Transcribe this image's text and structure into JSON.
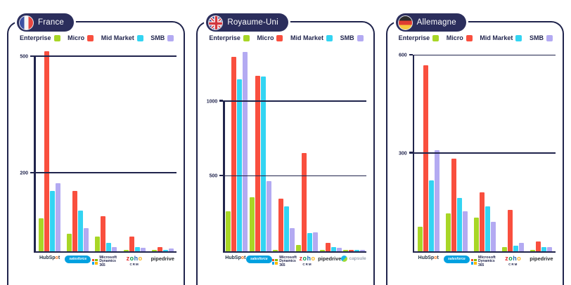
{
  "legend": {
    "items": [
      {
        "label": "Enterprise",
        "color": "#a8d626"
      },
      {
        "label": "Micro",
        "color": "#f94f3e"
      },
      {
        "label": "Mid Market",
        "color": "#33d4f2"
      },
      {
        "label": "SMB",
        "color": "#b3aaf2"
      }
    ]
  },
  "vendors": {
    "hubspot": {
      "label": "HubSpot"
    },
    "salesforce": {
      "label": "salesforce"
    },
    "dynamics": {
      "label": "Microsoft",
      "label2": "Dynamics 365"
    },
    "zoho": {
      "label": "zoho",
      "label2": "CRM"
    },
    "pipedrive": {
      "label": "pipedrive"
    },
    "capsule": {
      "label": "capsule"
    }
  },
  "colors": {
    "navy": "#20244c",
    "pill_bg": "#2b2e5c",
    "enterprise": "#a8d626",
    "micro": "#f94f3e",
    "mid_market": "#33d4f2",
    "smb": "#b3aaf2"
  },
  "chart_data": [
    {
      "type": "bar",
      "title": "France",
      "flag": "fr",
      "series_labels": [
        "Enterprise",
        "Micro",
        "Mid Market",
        "SMB"
      ],
      "ymax": 520,
      "ticks": [
        {
          "value": 500,
          "label": "500"
        },
        {
          "value": 200,
          "label": "200"
        }
      ],
      "grid": true,
      "legend_position": "top",
      "groups": [
        {
          "vendor": "hubspot",
          "values": [
            85,
            515,
            155,
            175
          ]
        },
        {
          "vendor": "salesforce",
          "values": [
            45,
            155,
            105,
            60
          ]
        },
        {
          "vendor": "dynamics",
          "values": [
            38,
            90,
            22,
            11
          ]
        },
        {
          "vendor": "zoho",
          "values": [
            4,
            38,
            11,
            9
          ]
        },
        {
          "vendor": "pipedrive",
          "values": [
            2,
            11,
            4,
            7
          ]
        }
      ]
    },
    {
      "type": "bar",
      "title": "Royaume-Uni",
      "flag": "uk",
      "series_labels": [
        "Enterprise",
        "Micro",
        "Mid Market",
        "SMB"
      ],
      "ymax": 1350,
      "ticks": [
        {
          "value": 1000,
          "label": "1000"
        },
        {
          "value": 500,
          "label": "500"
        }
      ],
      "grid": true,
      "legend_position": "top",
      "groups": [
        {
          "vendor": "hubspot",
          "values": [
            265,
            1300,
            1150,
            1330
          ]
        },
        {
          "vendor": "salesforce",
          "values": [
            360,
            1170,
            1165,
            470
          ]
        },
        {
          "vendor": "dynamics",
          "values": [
            7,
            350,
            300,
            155
          ]
        },
        {
          "vendor": "zoho",
          "values": [
            40,
            655,
            120,
            125
          ]
        },
        {
          "vendor": "pipedrive",
          "values": [
            2,
            54,
            27,
            22
          ]
        },
        {
          "vendor": "capsule",
          "values": [
            8,
            3,
            2,
            2
          ]
        }
      ]
    },
    {
      "type": "bar",
      "title": "Allemagne",
      "flag": "de",
      "series_labels": [
        "Enterprise",
        "Micro",
        "Mid Market",
        "SMB"
      ],
      "ymax": 620,
      "ticks": [
        {
          "value": 600,
          "label": "600"
        },
        {
          "value": 300,
          "label": "300"
        }
      ],
      "grid": true,
      "legend_position": "top",
      "groups": [
        {
          "vendor": "hubspot",
          "values": [
            76,
            570,
            218,
            310
          ]
        },
        {
          "vendor": "salesforce",
          "values": [
            117,
            285,
            163,
            122
          ]
        },
        {
          "vendor": "dynamics",
          "values": [
            103,
            181,
            138,
            90
          ]
        },
        {
          "vendor": "zoho",
          "values": [
            14,
            128,
            18,
            25
          ]
        },
        {
          "vendor": "pipedrive",
          "values": [
            4,
            30,
            14,
            12
          ]
        }
      ]
    }
  ]
}
